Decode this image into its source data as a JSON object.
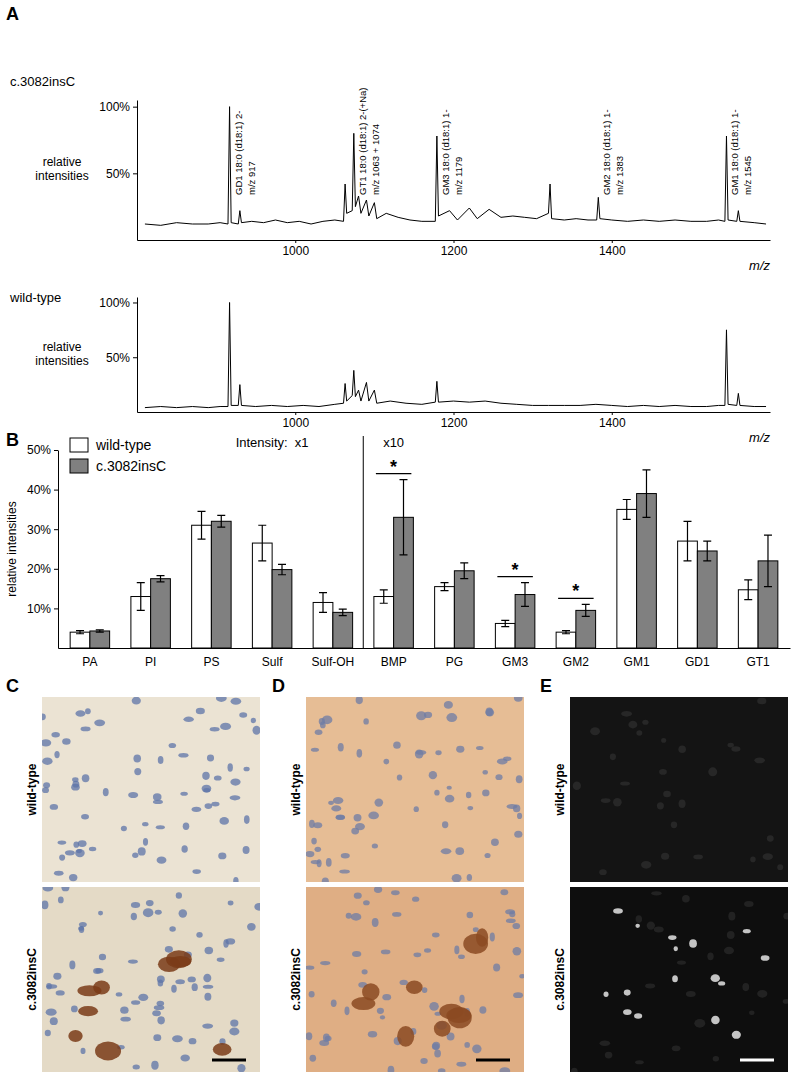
{
  "chart_data": [
    {
      "panel": "A",
      "type": "line",
      "y_label": "relative intensities",
      "x_label": "m/z",
      "x": [
        810,
        830,
        850,
        870,
        890,
        905,
        915,
        917,
        919,
        928,
        930,
        932,
        945,
        960,
        975,
        990,
        1005,
        1020,
        1035,
        1050,
        1061,
        1063,
        1065,
        1072,
        1074,
        1076,
        1080,
        1083,
        1090,
        1093,
        1100,
        1103,
        1115,
        1130,
        1145,
        1160,
        1177,
        1179,
        1181,
        1195,
        1205,
        1220,
        1230,
        1245,
        1260,
        1275,
        1290,
        1305,
        1320,
        1322,
        1324,
        1340,
        1355,
        1370,
        1381,
        1383,
        1385,
        1400,
        1420,
        1440,
        1460,
        1480,
        1500,
        1520,
        1535,
        1543,
        1545,
        1547,
        1558,
        1560,
        1562,
        1580,
        1595
      ],
      "series": [
        {
          "name": "c.3082insC",
          "color": "#000000",
          "values": [
            12,
            11,
            13,
            12,
            12,
            13,
            12,
            100,
            13,
            12,
            22,
            13,
            14,
            13,
            15,
            13,
            14,
            12,
            14,
            15,
            14,
            42,
            20,
            22,
            80,
            25,
            33,
            20,
            30,
            18,
            28,
            16,
            20,
            17,
            15,
            14,
            14,
            78,
            18,
            22,
            15,
            24,
            16,
            23,
            17,
            18,
            17,
            16,
            20,
            42,
            16,
            15,
            16,
            15,
            15,
            32,
            16,
            15,
            14,
            15,
            14,
            15,
            14,
            14,
            15,
            14,
            78,
            15,
            14,
            22,
            14,
            13,
            12
          ]
        }
      ],
      "xlim": [
        800,
        1600
      ],
      "xticks": [
        1000,
        1200,
        1400
      ],
      "ylim": [
        0,
        105
      ],
      "yticks": [
        {
          "value": 50,
          "label": "50%"
        },
        {
          "value": 100,
          "label": "100%"
        }
      ],
      "annotations": [
        {
          "x": 917,
          "lines": [
            "GD1 18:0 (d18:1) 2-",
            "m/z 917"
          ]
        },
        {
          "x": 1074,
          "lines": [
            "GT1 18:0 (d18:1) 2-(+Na)",
            "m/z 1063 + 1074"
          ]
        },
        {
          "x": 1179,
          "lines": [
            "GM3 18:0 (d18:1) 1-",
            "m/z 1179"
          ]
        },
        {
          "x": 1383,
          "lines": [
            "GM2 18:0 (d18:1) 1-",
            "m/z 1383"
          ]
        },
        {
          "x": 1545,
          "lines": [
            "GM1 18:0 (d18:1) 1-",
            "m/z 1545"
          ]
        }
      ]
    },
    {
      "type": "line",
      "y_label": "relative intensities",
      "x_label": "m/z",
      "x": [
        810,
        830,
        850,
        870,
        890,
        905,
        915,
        917,
        919,
        928,
        930,
        932,
        950,
        970,
        990,
        1010,
        1030,
        1050,
        1061,
        1063,
        1065,
        1072,
        1074,
        1076,
        1080,
        1083,
        1090,
        1093,
        1100,
        1103,
        1120,
        1140,
        1160,
        1177,
        1179,
        1181,
        1200,
        1220,
        1240,
        1260,
        1280,
        1300,
        1320,
        1340,
        1360,
        1380,
        1400,
        1420,
        1440,
        1460,
        1480,
        1500,
        1520,
        1535,
        1543,
        1545,
        1547,
        1558,
        1560,
        1562,
        1580,
        1595
      ],
      "series": [
        {
          "name": "wild-type",
          "color": "#000000",
          "values": [
            4,
            5,
            4,
            5,
            4,
            5,
            5,
            100,
            6,
            6,
            25,
            6,
            5,
            6,
            5,
            6,
            5,
            7,
            8,
            26,
            10,
            15,
            38,
            14,
            20,
            10,
            27,
            10,
            20,
            8,
            10,
            8,
            7,
            9,
            28,
            9,
            10,
            9,
            10,
            8,
            7,
            6,
            6,
            6,
            6,
            7,
            6,
            5,
            6,
            5,
            6,
            5,
            5,
            6,
            6,
            75,
            7,
            6,
            17,
            6,
            5,
            5
          ]
        }
      ],
      "xlim": [
        800,
        1600
      ],
      "xticks": [
        1000,
        1200,
        1400
      ],
      "ylim": [
        0,
        105
      ],
      "yticks": [
        {
          "value": 50,
          "label": "50%"
        },
        {
          "value": 100,
          "label": "100%"
        }
      ]
    },
    {
      "panel": "B",
      "type": "bar",
      "y_label": "relative intensities",
      "categories": [
        "PA",
        "PI",
        "PS",
        "Sulf",
        "Sulf-OH",
        "BMP",
        "PG",
        "GM3",
        "GM2",
        "GM1",
        "GD1",
        "GT1"
      ],
      "series": [
        {
          "name": "wild-type",
          "color": "#ffffff",
          "values": [
            4.0,
            13,
            31,
            26.5,
            11.5,
            13,
            15.5,
            6.2,
            4,
            35,
            27,
            14.7
          ],
          "errors": [
            0.4,
            3.5,
            3.5,
            4.5,
            2.5,
            1.7,
            1,
            0.8,
            0.4,
            2.5,
            5,
            2.5
          ]
        },
        {
          "name": "c.3082insC",
          "color": "#808080",
          "values": [
            4.3,
            17.5,
            32,
            19.8,
            9,
            33,
            19.5,
            13.5,
            9.5,
            39,
            24.5,
            22
          ],
          "errors": [
            0.3,
            0.8,
            1.5,
            1.3,
            0.8,
            9.5,
            2,
            3,
            1.5,
            6,
            2.5,
            6.5
          ]
        }
      ],
      "ylim": [
        0,
        50
      ],
      "yticks": [
        {
          "value": 10,
          "label": "10%"
        },
        {
          "value": 20,
          "label": "20%"
        },
        {
          "value": 30,
          "label": "30%"
        },
        {
          "value": 40,
          "label": "40%"
        },
        {
          "value": 50,
          "label": "50%"
        }
      ],
      "legend": "upper left",
      "annotations": [
        {
          "text": "Intensity:  x1",
          "category": "Sulf"
        },
        {
          "text": "x10",
          "category": "BMP"
        }
      ],
      "significance": [
        {
          "text": "*",
          "category": "BMP"
        },
        {
          "text": "*",
          "category": "GM3"
        },
        {
          "text": "*",
          "category": "GM2"
        }
      ]
    }
  ],
  "images": [
    {
      "panel": "C",
      "labels": [
        "wild-type",
        "c.3082insC"
      ]
    },
    {
      "panel": "D",
      "labels": [
        "wild-type",
        "c.3082insC"
      ]
    },
    {
      "panel": "E",
      "labels": [
        "wild-type",
        "c.3082insC"
      ]
    }
  ]
}
